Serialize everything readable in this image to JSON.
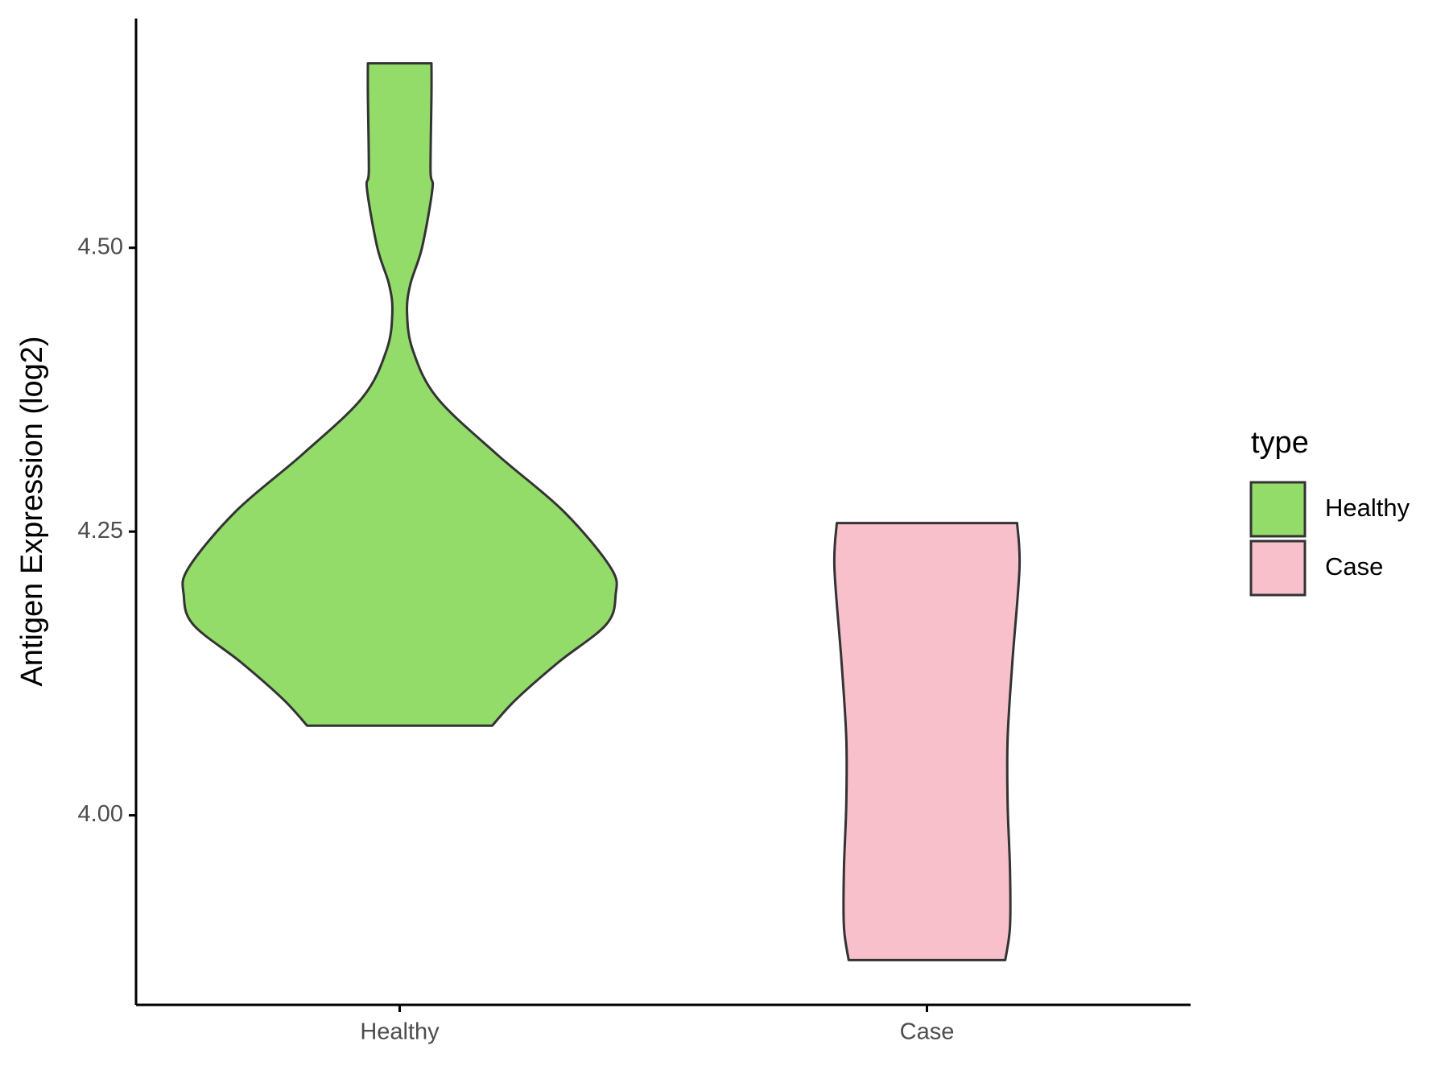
{
  "chart_data": {
    "type": "violin",
    "y_label": "Antigen Expression (log2)",
    "categories": [
      "Healthy",
      "Case"
    ],
    "ylim": [
      3.833,
      4.702
    ],
    "yticks": [
      {
        "value": 4.0,
        "label": "4.00"
      },
      {
        "value": 4.25,
        "label": "4.25"
      },
      {
        "value": 4.5,
        "label": "4.50"
      }
    ],
    "legend_title": "type",
    "legend_position": "right",
    "series": [
      {
        "name": "Healthy",
        "color": "#93dc6a",
        "y": [
          4.6625,
          4.635,
          4.568,
          4.552,
          4.5,
          4.468,
          4.443,
          4.41,
          4.368,
          4.318,
          4.268,
          4.218,
          4.194,
          4.168,
          4.135,
          4.102,
          4.079
        ],
        "density": [
          0.134,
          0.134,
          0.13,
          0.138,
          0.094,
          0.045,
          0.031,
          0.055,
          0.157,
          0.41,
          0.69,
          0.89,
          0.91,
          0.87,
          0.67,
          0.49,
          0.39
        ]
      },
      {
        "name": "Case",
        "color": "#f7c0cb",
        "y": [
          4.2575,
          4.218,
          4.135,
          4.068,
          4.01,
          3.952,
          3.902,
          3.8725
        ],
        "density": [
          0.38,
          0.39,
          0.36,
          0.34,
          0.34,
          0.35,
          0.35,
          0.33
        ]
      }
    ]
  }
}
